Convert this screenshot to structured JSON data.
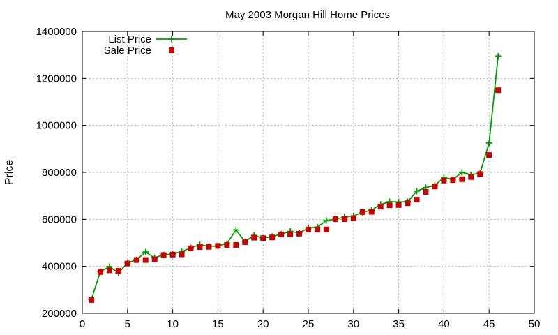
{
  "chart_data": {
    "type": "line",
    "title": "May 2003 Morgan Hill Home Prices",
    "xlabel": "",
    "ylabel": "Price",
    "xlim": [
      0,
      50
    ],
    "ylim": [
      200000,
      1400000
    ],
    "x_ticks": [
      0,
      5,
      10,
      15,
      20,
      25,
      30,
      35,
      40,
      45,
      50
    ],
    "y_ticks": [
      200000,
      400000,
      600000,
      800000,
      1000000,
      1200000,
      1400000
    ],
    "grid": true,
    "legend_position": "top-left",
    "series": [
      {
        "name": "List Price",
        "style": "line+plus",
        "color": "#00a000",
        "x": [
          1,
          2,
          3,
          4,
          5,
          6,
          7,
          8,
          9,
          10,
          11,
          12,
          13,
          14,
          15,
          16,
          17,
          18,
          19,
          20,
          21,
          22,
          23,
          24,
          25,
          26,
          27,
          28,
          29,
          30,
          31,
          32,
          33,
          34,
          35,
          36,
          37,
          38,
          39,
          40,
          41,
          42,
          43,
          44,
          45,
          46
        ],
        "values": [
          259000,
          378000,
          399000,
          372000,
          415000,
          428000,
          461000,
          437000,
          449000,
          453000,
          463000,
          479000,
          492000,
          485000,
          487000,
          497000,
          555000,
          505000,
          532000,
          520000,
          527000,
          537000,
          549000,
          542000,
          563000,
          567000,
          595000,
          601000,
          609000,
          615000,
          630000,
          639000,
          664000,
          675000,
          674000,
          675000,
          720000,
          735000,
          745000,
          778000,
          770000,
          800000,
          790000,
          797000,
          925000,
          1295000
        ]
      },
      {
        "name": "Sale Price",
        "style": "points-square",
        "color": "#cc0000",
        "x": [
          1,
          2,
          3,
          4,
          5,
          6,
          7,
          8,
          9,
          10,
          11,
          12,
          13,
          14,
          15,
          16,
          17,
          18,
          19,
          20,
          21,
          22,
          23,
          24,
          25,
          26,
          27,
          28,
          29,
          30,
          31,
          32,
          33,
          34,
          35,
          36,
          37,
          38,
          39,
          40,
          41,
          42,
          43,
          44,
          45,
          46
        ],
        "values": [
          257000,
          376000,
          383000,
          381000,
          412000,
          427000,
          427000,
          430000,
          448000,
          450000,
          451000,
          477000,
          482000,
          483000,
          487000,
          491000,
          491000,
          503000,
          522000,
          520000,
          523000,
          536000,
          537000,
          539000,
          557000,
          557000,
          557000,
          601000,
          601000,
          605000,
          631000,
          632000,
          654000,
          660000,
          661000,
          669000,
          684000,
          717000,
          740000,
          765000,
          767000,
          771000,
          780000,
          793000,
          874000,
          1150000
        ]
      }
    ]
  }
}
